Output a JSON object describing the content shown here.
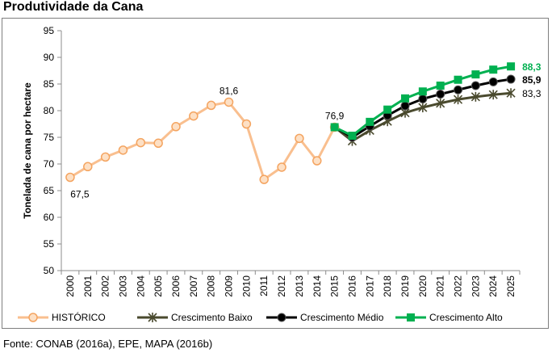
{
  "title": "Produtividade da Cana",
  "source": "Fonte: CONAB (2016a), EPE, MAPA (2016b)",
  "colors": {
    "historico": "#f9bf8f",
    "historico_marker": "#f4a460",
    "baixo": "#4a4a2e",
    "medio": "#000000",
    "alto": "#00b050",
    "axis": "#8c8c8c",
    "grid": "#d9d9d9"
  },
  "chart_data": {
    "type": "line",
    "title": "Produtividade da Cana",
    "ylabel": "Tonelada de cana por hectare",
    "xlabel": "",
    "ylim": [
      50,
      95
    ],
    "yticks": [
      50,
      55,
      60,
      65,
      70,
      75,
      80,
      85,
      90,
      95
    ],
    "grid": false,
    "legend_position": "bottom",
    "categories": [
      "2000",
      "2001",
      "2002",
      "2003",
      "2004",
      "2005",
      "2006",
      "2007",
      "2008",
      "2009",
      "2010",
      "2011",
      "2012",
      "2013",
      "2014",
      "2015",
      "2016",
      "2017",
      "2018",
      "2019",
      "2020",
      "2021",
      "2022",
      "2023",
      "2024",
      "2025"
    ],
    "series": [
      {
        "name": "HISTÓRICO",
        "key": "historico",
        "marker": "circle",
        "values": [
          67.5,
          69.5,
          71.3,
          72.6,
          74.0,
          73.9,
          77.0,
          79.0,
          81.0,
          81.6,
          77.5,
          67.1,
          69.4,
          74.8,
          70.6,
          76.9,
          null,
          null,
          null,
          null,
          null,
          null,
          null,
          null,
          null,
          null
        ]
      },
      {
        "name": "Crescimento Baixo",
        "key": "baixo",
        "marker": "star",
        "values": [
          null,
          null,
          null,
          null,
          null,
          null,
          null,
          null,
          null,
          null,
          null,
          null,
          null,
          null,
          null,
          76.9,
          74.3,
          76.3,
          78.0,
          79.6,
          80.6,
          81.4,
          82.1,
          82.6,
          83.0,
          83.3
        ]
      },
      {
        "name": "Crescimento Médio",
        "key": "medio",
        "marker": "circle",
        "values": [
          null,
          null,
          null,
          null,
          null,
          null,
          null,
          null,
          null,
          null,
          null,
          null,
          null,
          null,
          null,
          76.9,
          75.0,
          77.1,
          79.1,
          80.9,
          82.2,
          83.1,
          83.9,
          84.7,
          85.4,
          85.9
        ]
      },
      {
        "name": "Crescimento Alto",
        "key": "alto",
        "marker": "square",
        "values": [
          null,
          null,
          null,
          null,
          null,
          null,
          null,
          null,
          null,
          null,
          null,
          null,
          null,
          null,
          null,
          76.9,
          75.3,
          77.9,
          80.2,
          82.3,
          83.6,
          84.7,
          85.8,
          86.8,
          87.7,
          88.3
        ]
      }
    ],
    "data_labels": [
      {
        "series": "historico",
        "index": 0,
        "text": "67,5"
      },
      {
        "series": "historico",
        "index": 9,
        "text": "81,6"
      },
      {
        "series": "historico",
        "index": 15,
        "text": "76,9"
      },
      {
        "series": "baixo",
        "index": 25,
        "text": "83,3"
      },
      {
        "series": "medio",
        "index": 25,
        "text": "85,9"
      },
      {
        "series": "alto",
        "index": 25,
        "text": "88,3"
      }
    ]
  }
}
